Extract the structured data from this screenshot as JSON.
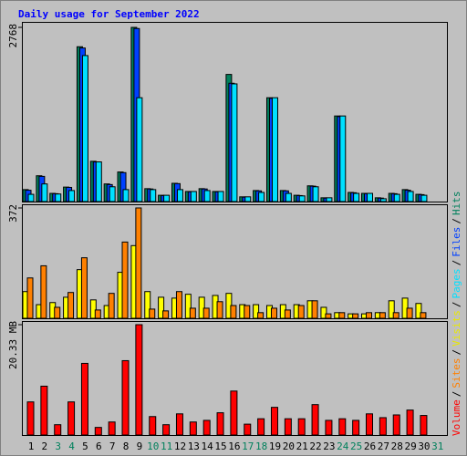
{
  "title": "Daily usage for September 2022",
  "legend_separator": "/",
  "chart_data": [
    {
      "type": "bar",
      "ylim": [
        0,
        2768
      ],
      "yticks": [
        2768
      ],
      "series": [
        {
          "name": "Hits",
          "color": "#00805c",
          "values": [
            190,
            410,
            130,
            230,
            2460,
            640,
            280,
            470,
            2768,
            205,
            100,
            290,
            160,
            205,
            160,
            2020,
            75,
            175,
            1650,
            175,
            100,
            250,
            60,
            1360,
            145,
            130,
            60,
            130,
            190,
            115,
            null
          ]
        },
        {
          "name": "Files",
          "color": "#0040ff",
          "values": [
            180,
            400,
            125,
            225,
            2440,
            630,
            270,
            460,
            2750,
            200,
            95,
            285,
            155,
            200,
            155,
            1880,
            70,
            170,
            1640,
            170,
            95,
            245,
            55,
            1350,
            140,
            125,
            55,
            125,
            180,
            110,
            null
          ]
        },
        {
          "name": "Pages",
          "color": "#00e0ff",
          "values": [
            115,
            280,
            120,
            175,
            2320,
            630,
            235,
            190,
            1650,
            190,
            100,
            190,
            160,
            175,
            160,
            1870,
            75,
            145,
            1650,
            130,
            90,
            235,
            60,
            1360,
            130,
            130,
            45,
            115,
            160,
            100,
            null
          ]
        }
      ]
    },
    {
      "type": "bar",
      "ylim": [
        0,
        372
      ],
      "yticks": [
        372
      ],
      "series": [
        {
          "name": "Visits",
          "color": "#ffff00",
          "values": [
            90,
            46,
            53,
            71,
            164,
            62,
            43,
            155,
            245,
            90,
            71,
            68,
            81,
            71,
            77,
            84,
            46,
            46,
            43,
            46,
            46,
            59,
            37,
            19,
            15,
            15,
            19,
            59,
            68,
            50,
            null
          ]
        },
        {
          "name": "Sites",
          "color": "#ff8000",
          "values": [
            136,
            177,
            37,
            87,
            204,
            28,
            84,
            257,
            372,
            31,
            25,
            90,
            34,
            34,
            56,
            43,
            43,
            19,
            34,
            28,
            43,
            59,
            15,
            19,
            15,
            19,
            19,
            19,
            34,
            19,
            null
          ]
        }
      ]
    },
    {
      "type": "bar",
      "ylim": [
        0,
        20.33
      ],
      "yticks": [
        {
          "value": 20.33,
          "label": "20.33 MB"
        }
      ],
      "categories": [
        "1",
        "2",
        "3",
        "4",
        "5",
        "6",
        "7",
        "8",
        "9",
        "10",
        "11",
        "12",
        "13",
        "14",
        "15",
        "16",
        "17",
        "18",
        "19",
        "20",
        "21",
        "22",
        "23",
        "24",
        "25",
        "26",
        "27",
        "28",
        "29",
        "30",
        "31"
      ],
      "category_colors": [
        "#000000",
        "#000000",
        "#00805c",
        "#00805c",
        "#000000",
        "#000000",
        "#000000",
        "#000000",
        "#000000",
        "#00805c",
        "#00805c",
        "#000000",
        "#000000",
        "#000000",
        "#000000",
        "#000000",
        "#00805c",
        "#00805c",
        "#000000",
        "#000000",
        "#000000",
        "#000000",
        "#000000",
        "#00805c",
        "#00805c",
        "#000000",
        "#000000",
        "#000000",
        "#000000",
        "#000000",
        "#00805c"
      ],
      "series": [
        {
          "name": "Volume",
          "color": "#ff0000",
          "values": [
            6.1,
            9.0,
            1.9,
            6.1,
            13.2,
            1.4,
            2.4,
            13.7,
            20.33,
            3.4,
            1.9,
            3.9,
            2.4,
            2.7,
            4.1,
            8.1,
            2.0,
            3.0,
            5.1,
            3.0,
            3.0,
            5.6,
            2.7,
            3.0,
            2.7,
            3.9,
            3.2,
            3.7,
            4.6,
            3.6,
            null
          ]
        }
      ]
    }
  ]
}
